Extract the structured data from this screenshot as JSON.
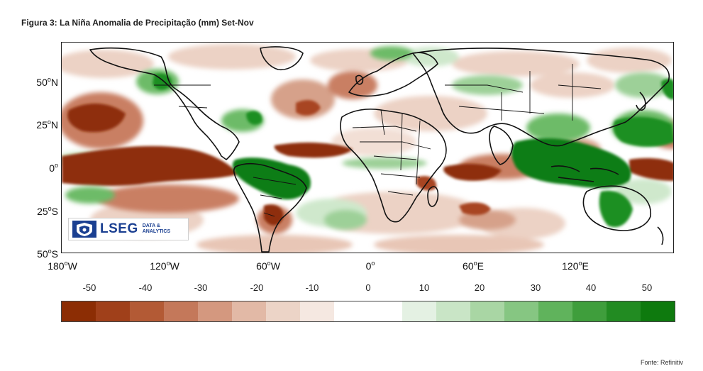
{
  "title": "Figura 3: La Niña Anomalia de Precipitação (mm) Set-Nov",
  "map": {
    "projection": "equirectangular",
    "lon_range": [
      -180,
      180
    ],
    "lat_range": [
      -50,
      75
    ],
    "lat_labels": [
      {
        "deg": "50",
        "hemi": "N"
      },
      {
        "deg": "25",
        "hemi": "N"
      },
      {
        "deg": "0",
        "hemi": ""
      },
      {
        "deg": "25",
        "hemi": "S"
      },
      {
        "deg": "50",
        "hemi": "S"
      }
    ],
    "lon_labels": [
      {
        "deg": "180",
        "hemi": "W"
      },
      {
        "deg": "120",
        "hemi": "W"
      },
      {
        "deg": "60",
        "hemi": "W"
      },
      {
        "deg": "0",
        "hemi": ""
      },
      {
        "deg": "60",
        "hemi": "E"
      },
      {
        "deg": "120",
        "hemi": "E"
      }
    ],
    "degree_symbol": "o"
  },
  "colorbar": {
    "tick_labels": [
      "-50",
      "-40",
      "-30",
      "-20",
      "-10",
      "0",
      "10",
      "20",
      "30",
      "40",
      "50"
    ],
    "colors": [
      "#8c2d04",
      "#a0401a",
      "#b35a35",
      "#c4785a",
      "#d4987f",
      "#e2b9a6",
      "#ecd4c7",
      "#f5e8e1",
      "#ffffff",
      "#ffffff",
      "#e4f1e3",
      "#c9e5c6",
      "#a9d6a4",
      "#86c682",
      "#60b35c",
      "#3f9e3c",
      "#228b22",
      "#0e7a0e"
    ]
  },
  "logo": {
    "word": "LSEG",
    "sub_line1": "DATA &",
    "sub_line2": "ANALYTICS"
  },
  "source": "Fonte: Refinitiv",
  "palette": {
    "dry_strong": "#8e2f08",
    "dry_mid": "#c97f63",
    "dry_light": "#ecd2c5",
    "wet_light": "#cfe8cc",
    "wet_mid": "#6dbb68",
    "wet_strong": "#0f7d12"
  }
}
